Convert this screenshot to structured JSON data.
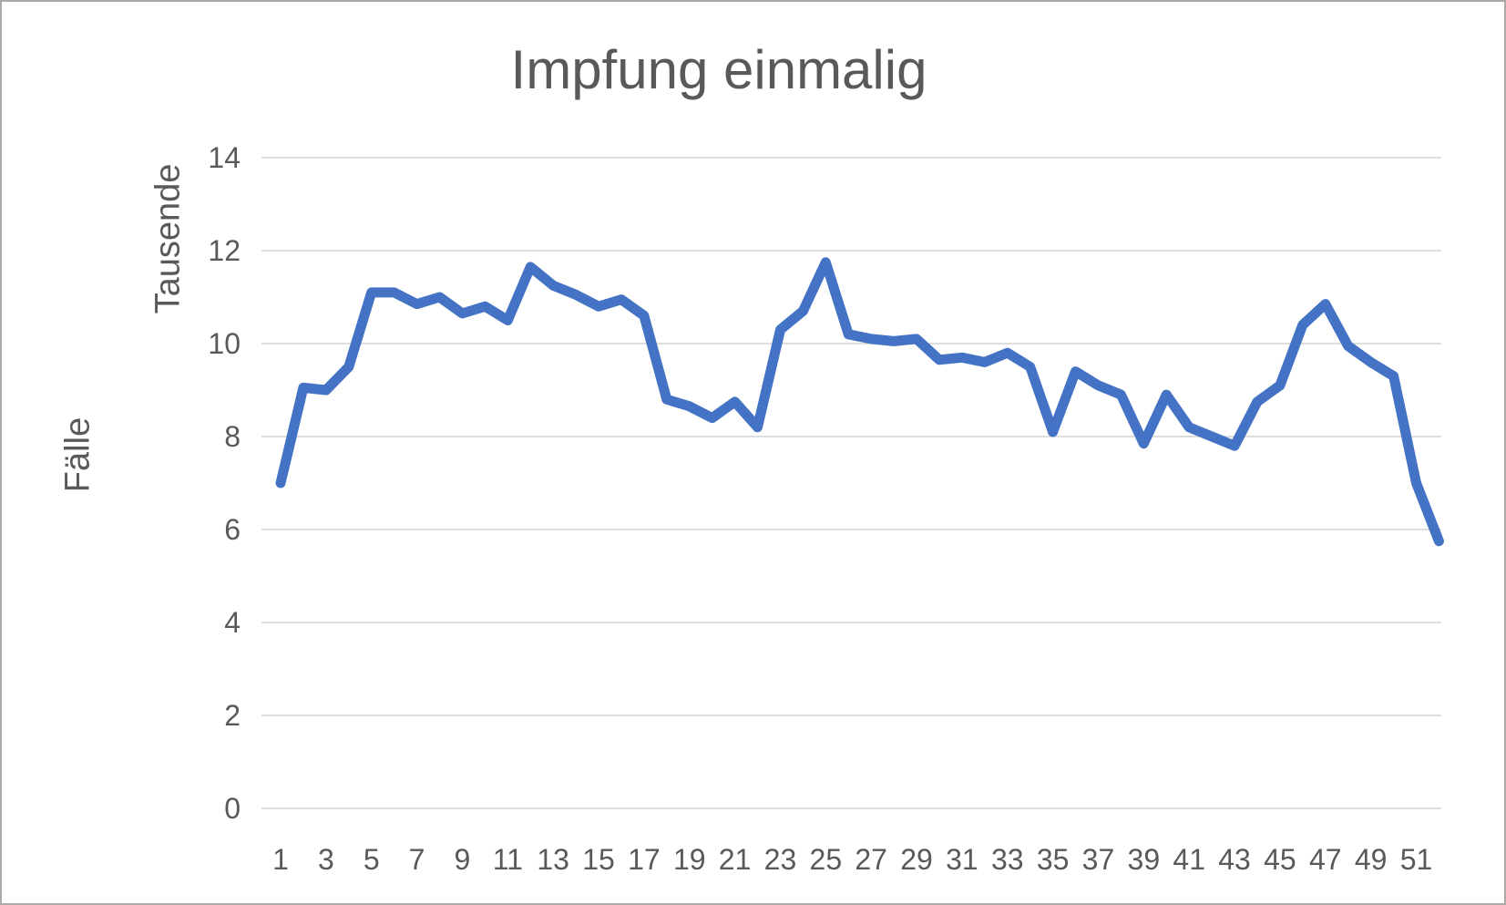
{
  "chart_data": {
    "type": "line",
    "title": "Impfung einmalig",
    "ylabel": "Fälle",
    "y_unit_label": "Tausende",
    "xlabel": "",
    "x": [
      1,
      2,
      3,
      4,
      5,
      6,
      7,
      8,
      9,
      10,
      11,
      12,
      13,
      14,
      15,
      16,
      17,
      18,
      19,
      20,
      21,
      22,
      23,
      24,
      25,
      26,
      27,
      28,
      29,
      30,
      31,
      32,
      33,
      34,
      35,
      36,
      37,
      38,
      39,
      40,
      41,
      42,
      43,
      44,
      45,
      46,
      47,
      48,
      49,
      50,
      51,
      52
    ],
    "values": [
      7.0,
      9.05,
      9.0,
      9.5,
      11.1,
      11.1,
      10.85,
      11.0,
      10.65,
      10.8,
      10.5,
      11.65,
      11.25,
      11.05,
      10.8,
      10.95,
      10.6,
      8.8,
      8.65,
      8.4,
      8.75,
      8.2,
      10.3,
      10.7,
      11.75,
      10.2,
      10.1,
      10.05,
      10.1,
      9.65,
      9.7,
      9.6,
      9.8,
      9.5,
      8.1,
      9.4,
      9.1,
      8.9,
      7.85,
      8.9,
      8.2,
      8.0,
      7.8,
      8.75,
      9.1,
      10.4,
      10.85,
      9.95,
      9.6,
      9.3,
      7.0,
      5.75
    ],
    "ylim": [
      0,
      14
    ],
    "yticks": [
      0,
      2,
      4,
      6,
      8,
      10,
      12,
      14
    ],
    "xticks": [
      1,
      3,
      5,
      7,
      9,
      11,
      13,
      15,
      17,
      19,
      21,
      23,
      25,
      27,
      29,
      31,
      33,
      35,
      37,
      39,
      41,
      43,
      45,
      47,
      49,
      51
    ],
    "grid": true,
    "legend": "none",
    "line_color": "#4472C4",
    "gridline_color": "#D9D9D9",
    "text_color": "#595959"
  }
}
